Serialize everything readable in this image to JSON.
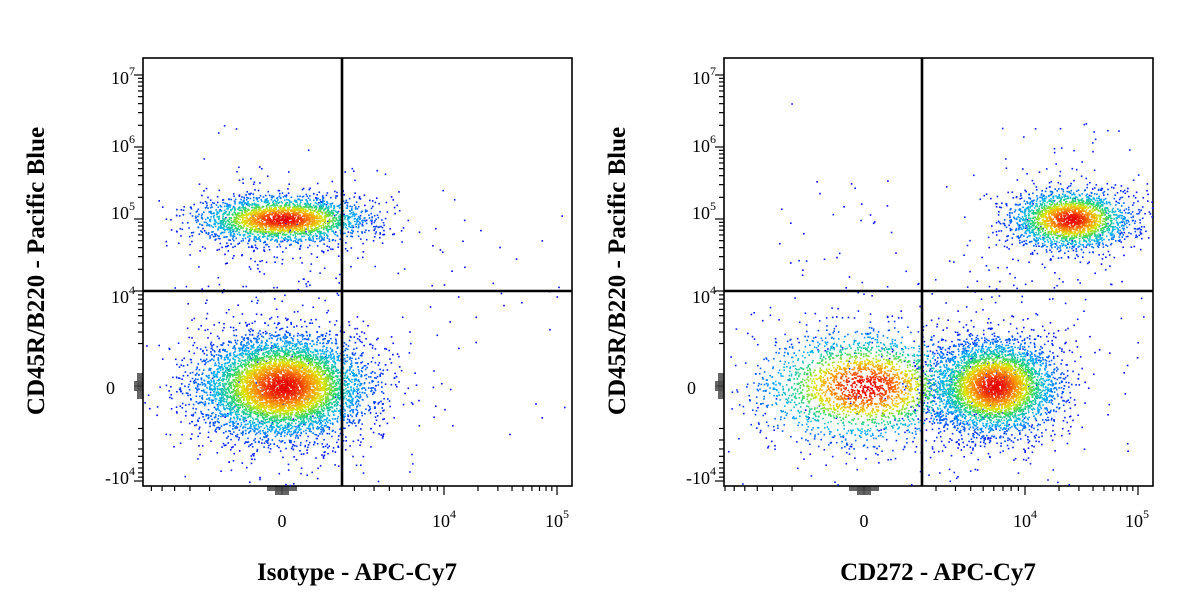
{
  "chart_data": [
    {
      "type": "scatter",
      "xlabel": "Isotype - APC-Cy7",
      "ylabel": "CD45R/B220 - Pacific Blue",
      "xscale": "biexponential",
      "yscale": "biexponential",
      "xticks": [
        {
          "base": "0",
          "exp": ""
        },
        {
          "base": "10",
          "exp": "4"
        },
        {
          "base": "10",
          "exp": "5"
        }
      ],
      "yticks": [
        {
          "base": "-10",
          "exp": "4"
        },
        {
          "base": "0",
          "exp": ""
        },
        {
          "base": "10",
          "exp": "4"
        },
        {
          "base": "10",
          "exp": "5"
        },
        {
          "base": "10",
          "exp": "6"
        },
        {
          "base": "10",
          "exp": "7"
        }
      ],
      "quadrant_gate": {
        "x": 1200,
        "y": 10000
      },
      "populations": [
        {
          "x": 0,
          "y": 0,
          "count": 6500
        },
        {
          "x": 0,
          "y": 100000,
          "count": 2600
        }
      ]
    },
    {
      "type": "scatter",
      "xlabel": "CD272 - APC-Cy7",
      "ylabel": "CD45R/B220 - Pacific Blue",
      "xscale": "biexponential",
      "yscale": "biexponential",
      "xticks": [
        {
          "base": "0",
          "exp": ""
        },
        {
          "base": "10",
          "exp": "4"
        },
        {
          "base": "10",
          "exp": "5"
        }
      ],
      "yticks": [
        {
          "base": "-10",
          "exp": "4"
        },
        {
          "base": "0",
          "exp": ""
        },
        {
          "base": "10",
          "exp": "4"
        },
        {
          "base": "10",
          "exp": "5"
        },
        {
          "base": "10",
          "exp": "6"
        },
        {
          "base": "10",
          "exp": "7"
        }
      ],
      "quadrant_gate": {
        "x": 1200,
        "y": 10000
      },
      "populations": [
        {
          "x": 0,
          "y": 0,
          "count": 2400
        },
        {
          "x": 6000,
          "y": 0,
          "count": 4200
        },
        {
          "x": 25000,
          "y": 100000,
          "count": 2300
        }
      ]
    }
  ]
}
